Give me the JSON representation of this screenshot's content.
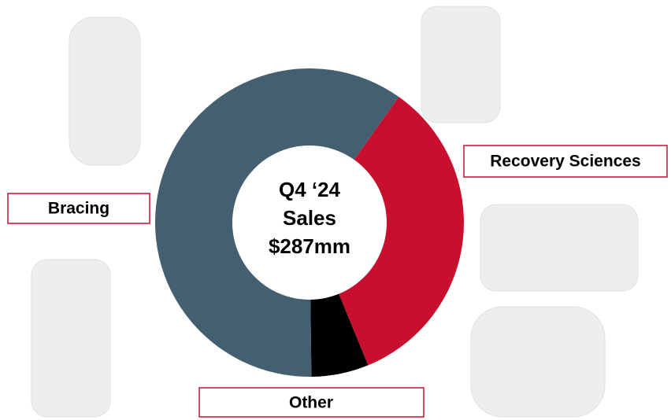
{
  "chart_data": {
    "type": "pie",
    "center_text": [
      "Q4 ‘24",
      "Sales",
      "$287mm"
    ],
    "categories": [
      "Recovery Sciences",
      "Other",
      "Bracing"
    ],
    "values": [
      34,
      6,
      60
    ],
    "colors": [
      "#c8102e",
      "#000000",
      "#445f70"
    ]
  }
}
